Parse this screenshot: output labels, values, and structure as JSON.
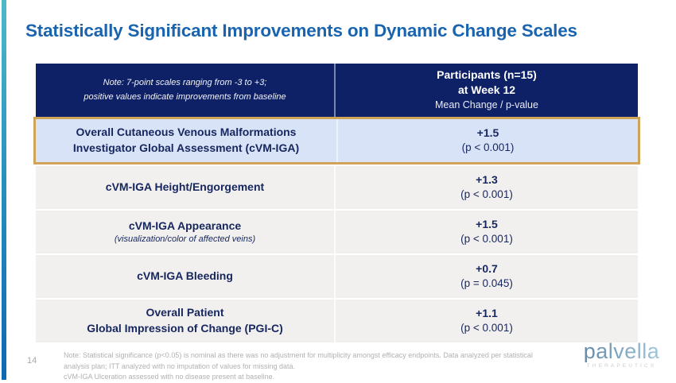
{
  "title": "Statistically Significant Improvements on Dynamic Change Scales",
  "table": {
    "header": {
      "note_line1": "Note: 7-point scales ranging from -3 to +3;",
      "note_line2": "positive values indicate improvements from baseline",
      "participants_line1": "Participants (n=15)",
      "participants_line2": "at Week 12",
      "participants_line3": "Mean Change / p-value"
    },
    "rows": [
      {
        "line1": "Overall Cutaneous Venous Malformations",
        "line2": "Investigator Global Assessment (cVM-IGA)",
        "value": "+1.5",
        "pvalue": "(p < 0.001)",
        "highlighted": true
      },
      {
        "line1": "cVM-IGA Height/Engorgement",
        "value": "+1.3",
        "pvalue": "(p < 0.001)",
        "highlighted": false
      },
      {
        "line1": "cVM-IGA Appearance",
        "subline": "(visualization/color of affected veins)",
        "value": "+1.5",
        "pvalue": "(p < 0.001)",
        "highlighted": false
      },
      {
        "line1": "cVM-IGA Bleeding",
        "value": "+0.7",
        "pvalue": "(p = 0.045)",
        "highlighted": false
      },
      {
        "line1": "Overall Patient",
        "line2": "Global Impression of Change (PGI-C)",
        "value": "+1.1",
        "pvalue": "(p < 0.001)",
        "highlighted": false
      }
    ]
  },
  "footer": {
    "page_number": "14",
    "note_line1": "Note: Statistical significance (p<0.05) is nominal as there was no adjustment for multiplicity amongst efficacy endpoints. Data analyzed per statistical analysis plan; ITT analyzed with no imputation of values for missing data.",
    "note_line2": "cVM-IGA Ulceration assessed with no disease present at baseline."
  },
  "logo": {
    "name": "palvella",
    "subtitle": "THERAPEUTICS"
  },
  "colors": {
    "title_blue": "#1a64af",
    "header_navy": "#0e2166",
    "highlight_bg": "#d9e3f7",
    "highlight_border": "#d1a356",
    "row_gray": "#f1f0ee",
    "body_navy": "#16265e",
    "accent_bar_top": "#4fb9c6",
    "accent_bar_bottom": "#0e68b3"
  }
}
